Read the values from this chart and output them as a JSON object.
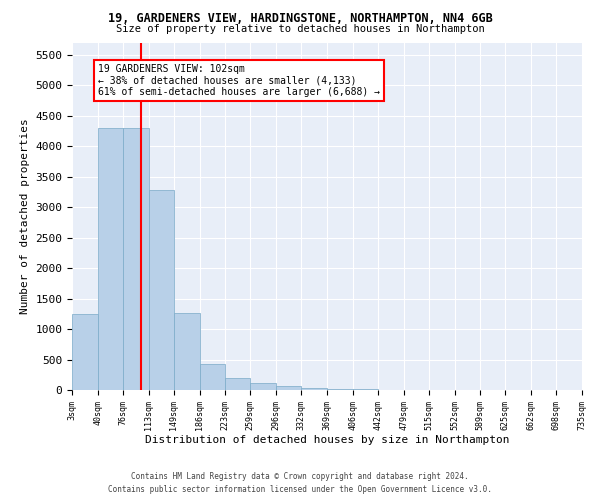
{
  "title": "19, GARDENERS VIEW, HARDINGSTONE, NORTHAMPTON, NN4 6GB",
  "subtitle": "Size of property relative to detached houses in Northampton",
  "xlabel": "Distribution of detached houses by size in Northampton",
  "ylabel": "Number of detached properties",
  "footer1": "Contains HM Land Registry data © Crown copyright and database right 2024.",
  "footer2": "Contains public sector information licensed under the Open Government Licence v3.0.",
  "annotation_title": "19 GARDENERS VIEW: 102sqm",
  "annotation_line1": "← 38% of detached houses are smaller (4,133)",
  "annotation_line2": "61% of semi-detached houses are larger (6,688) →",
  "property_size": 102,
  "bar_color": "#b8d0e8",
  "bar_edge_color": "#7aaac8",
  "redline_color": "red",
  "background_color": "#e8eef8",
  "bins": [
    3,
    40,
    76,
    113,
    149,
    186,
    223,
    259,
    296,
    332,
    369,
    406,
    442,
    479,
    515,
    552,
    589,
    625,
    662,
    698,
    735
  ],
  "bar_values": [
    1250,
    4300,
    4300,
    3280,
    1270,
    430,
    200,
    110,
    60,
    35,
    18,
    10,
    5,
    3,
    2,
    1,
    1,
    0,
    0,
    0
  ],
  "ylim": [
    0,
    5700
  ],
  "yticks": [
    0,
    500,
    1000,
    1500,
    2000,
    2500,
    3000,
    3500,
    4000,
    4500,
    5000,
    5500
  ]
}
